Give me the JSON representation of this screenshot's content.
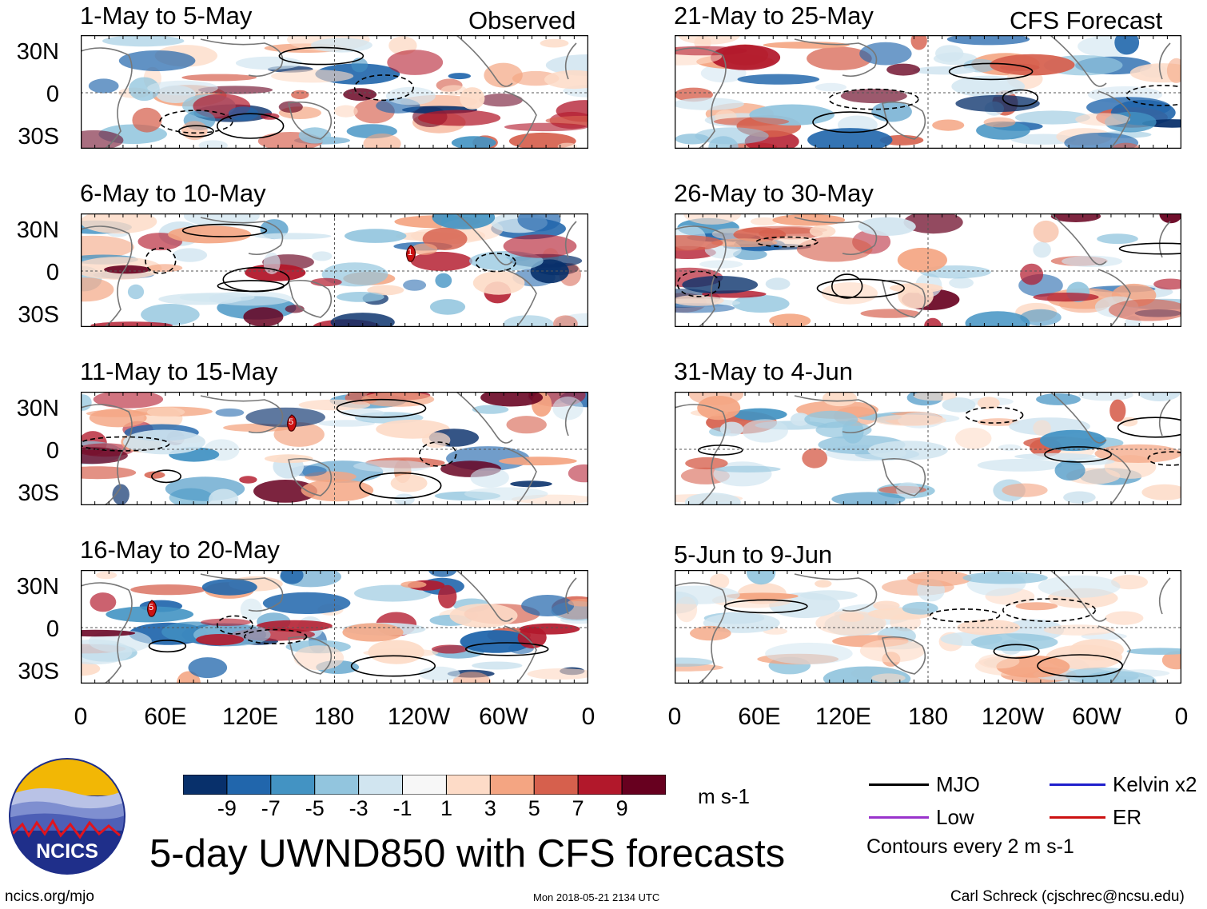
{
  "observed_label": "Observed",
  "forecast_label": "CFS Forecast",
  "panels_left": [
    {
      "title": "1-May to 5-May"
    },
    {
      "title": "6-May to 10-May"
    },
    {
      "title": "11-May to 15-May"
    },
    {
      "title": "16-May to 20-May"
    }
  ],
  "panels_right": [
    {
      "title": "21-May to 25-May"
    },
    {
      "title": "26-May to 30-May"
    },
    {
      "title": "31-May to 4-Jun"
    },
    {
      "title": "5-Jun to 9-Jun"
    }
  ],
  "lat_labels": [
    "30N",
    "0",
    "30S"
  ],
  "lon_labels": [
    "0",
    "60E",
    "120E",
    "180",
    "120W",
    "60W",
    "0"
  ],
  "storm_markers": [
    "1",
    "5",
    "5"
  ],
  "colorbar": {
    "colors": [
      "#08306b",
      "#2166ac",
      "#4393c3",
      "#92c5de",
      "#d1e5f0",
      "#f7f7f7",
      "#fddbc7",
      "#f4a582",
      "#d6604d",
      "#b2182b",
      "#67001f"
    ],
    "ticks": [
      "-9",
      "-7",
      "-5",
      "-3",
      "-1",
      "1",
      "3",
      "5",
      "7",
      "9"
    ],
    "unit": "m s-1"
  },
  "legend": {
    "mjo": "MJO",
    "kelvin": "Kelvin x2",
    "low": "Low",
    "er": "ER",
    "contours_note": "Contours every 2 m s-1",
    "colors": {
      "mjo": "#000000",
      "kelvin": "#1f1fcc",
      "low": "#9933cc",
      "er": "#cc1111"
    }
  },
  "logo_text": "NCICS",
  "main_title": "5-day UWND850 with CFS forecasts",
  "footer": {
    "url": "ncics.org/mjo",
    "timestamp": "Mon 2018-05-21 2134 UTC",
    "author": "Carl Schreck (cjschrec@ncsu.edu)"
  }
}
